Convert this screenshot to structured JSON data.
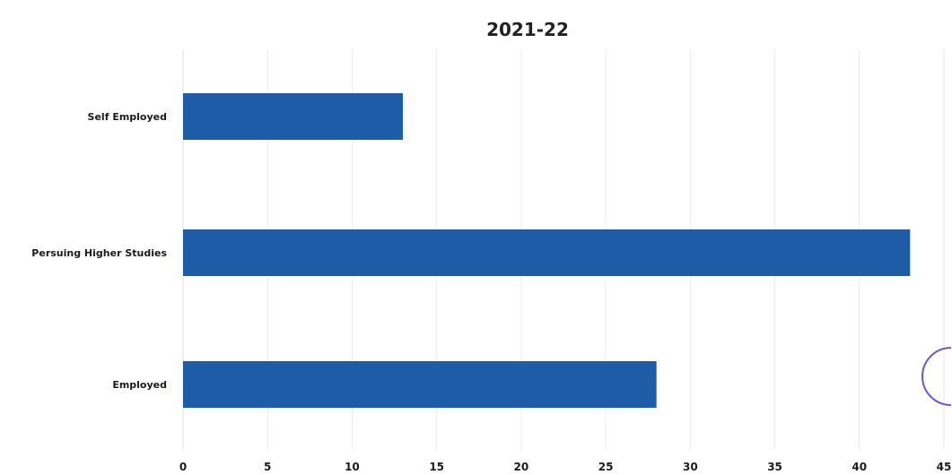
{
  "chart_data": {
    "type": "bar",
    "orientation": "horizontal",
    "title": "2021-22",
    "categories": [
      "Self Employed",
      "Persuing Higher Studies",
      "Employed"
    ],
    "values": [
      13,
      43,
      28
    ],
    "xlim": [
      0,
      45
    ],
    "xticks": [
      "0",
      "5",
      "10",
      "15",
      "20",
      "25",
      "30",
      "35",
      "40",
      "45"
    ],
    "grid": true,
    "legend": "none",
    "colors": {
      "bar": "#1f5ca8",
      "grid": "#ebebeb",
      "text": "#1b1b1b"
    }
  }
}
